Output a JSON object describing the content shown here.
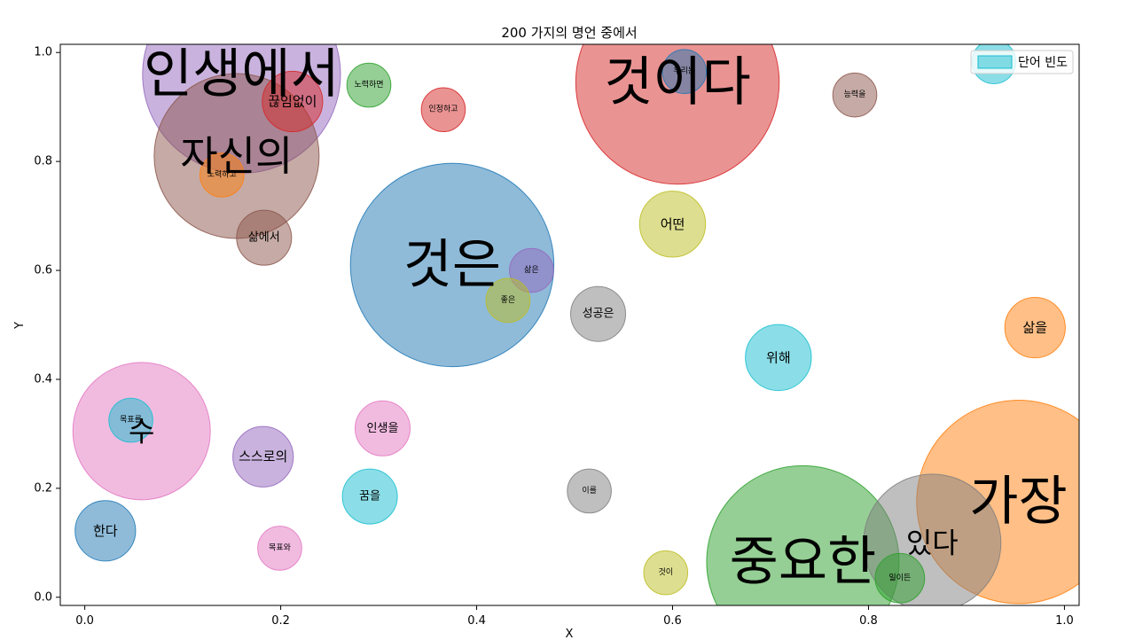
{
  "chart_data": {
    "type": "scatter",
    "title": "200 가지의 명언 중에서",
    "xlabel": "X",
    "ylabel": "Y",
    "xlim": [
      -0.025,
      1.015
    ],
    "ylim": [
      -0.015,
      1.015
    ],
    "xticks": [
      "0.0",
      "0.2",
      "0.4",
      "0.6",
      "0.8",
      "1.0"
    ],
    "yticks": [
      "0.0",
      "0.2",
      "0.4",
      "0.6",
      "0.8",
      "1.0"
    ],
    "legend": {
      "label": "단어 빈도",
      "position": "top-right",
      "color": "#17becf"
    },
    "points": [
      {
        "word": "인생에서",
        "x": 0.16,
        "y": 0.96,
        "size": 180,
        "color": "#9467bd"
      },
      {
        "word": "것이다",
        "x": 0.605,
        "y": 0.945,
        "size": 185,
        "color": "#d62728"
      },
      {
        "word": "자신의",
        "x": 0.155,
        "y": 0.81,
        "size": 150,
        "color": "#8c564b"
      },
      {
        "word": "끊임없이",
        "x": 0.212,
        "y": 0.91,
        "size": 55,
        "color": "#d62728"
      },
      {
        "word": "노력하면",
        "x": 0.29,
        "y": 0.94,
        "size": 40,
        "color": "#2ca02c"
      },
      {
        "word": "인정하고",
        "x": 0.366,
        "y": 0.895,
        "size": 40,
        "color": "#d62728"
      },
      {
        "word": "우리는",
        "x": 0.612,
        "y": 0.965,
        "size": 40,
        "color": "#1f77b4"
      },
      {
        "word": "능력을",
        "x": 0.786,
        "y": 0.922,
        "size": 40,
        "color": "#8c564b"
      },
      {
        "word": "노력하고",
        "x": 0.14,
        "y": 0.775,
        "size": 40,
        "color": "#ff7f0e"
      },
      {
        "word": "삶에서",
        "x": 0.183,
        "y": 0.66,
        "size": 50,
        "color": "#8c564b"
      },
      {
        "word": "것은",
        "x": 0.375,
        "y": 0.61,
        "size": 185,
        "color": "#1f77b4"
      },
      {
        "word": "삶은",
        "x": 0.456,
        "y": 0.6,
        "size": 40,
        "color": "#9467bd"
      },
      {
        "word": "좋은",
        "x": 0.432,
        "y": 0.545,
        "size": 40,
        "color": "#bcbd22"
      },
      {
        "word": "어떤",
        "x": 0.6,
        "y": 0.685,
        "size": 60,
        "color": "#bcbd22"
      },
      {
        "word": "성공은",
        "x": 0.524,
        "y": 0.52,
        "size": 50,
        "color": "#7f7f7f"
      },
      {
        "word": "위해",
        "x": 0.708,
        "y": 0.44,
        "size": 60,
        "color": "#17becf"
      },
      {
        "word": "삶을",
        "x": 0.97,
        "y": 0.495,
        "size": 55,
        "color": "#ff7f0e"
      },
      {
        "word": "수",
        "x": 0.058,
        "y": 0.305,
        "size": 125,
        "color": "#e377c2"
      },
      {
        "word": "목표를",
        "x": 0.047,
        "y": 0.325,
        "size": 40,
        "color": "#17becf"
      },
      {
        "word": "스스로의",
        "x": 0.182,
        "y": 0.258,
        "size": 55,
        "color": "#9467bd"
      },
      {
        "word": "인생을",
        "x": 0.304,
        "y": 0.31,
        "size": 50,
        "color": "#e377c2"
      },
      {
        "word": "꿈을",
        "x": 0.291,
        "y": 0.185,
        "size": 50,
        "color": "#17becf"
      },
      {
        "word": "한다",
        "x": 0.021,
        "y": 0.122,
        "size": 55,
        "color": "#1f77b4"
      },
      {
        "word": "목표와",
        "x": 0.199,
        "y": 0.09,
        "size": 40,
        "color": "#e377c2"
      },
      {
        "word": "이를",
        "x": 0.515,
        "y": 0.195,
        "size": 40,
        "color": "#7f7f7f"
      },
      {
        "word": "것이",
        "x": 0.593,
        "y": 0.045,
        "size": 40,
        "color": "#bcbd22"
      },
      {
        "word": "중요한",
        "x": 0.733,
        "y": 0.065,
        "size": 175,
        "color": "#2ca02c"
      },
      {
        "word": "일이든",
        "x": 0.832,
        "y": 0.035,
        "size": 45,
        "color": "#2ca02c"
      },
      {
        "word": "있다",
        "x": 0.865,
        "y": 0.1,
        "size": 125,
        "color": "#7f7f7f"
      },
      {
        "word": "가장",
        "x": 0.953,
        "y": 0.175,
        "size": 185,
        "color": "#ff7f0e"
      },
      {
        "word": "",
        "x": 0.928,
        "y": 0.983,
        "size": 40,
        "color": "#17becf"
      }
    ]
  }
}
